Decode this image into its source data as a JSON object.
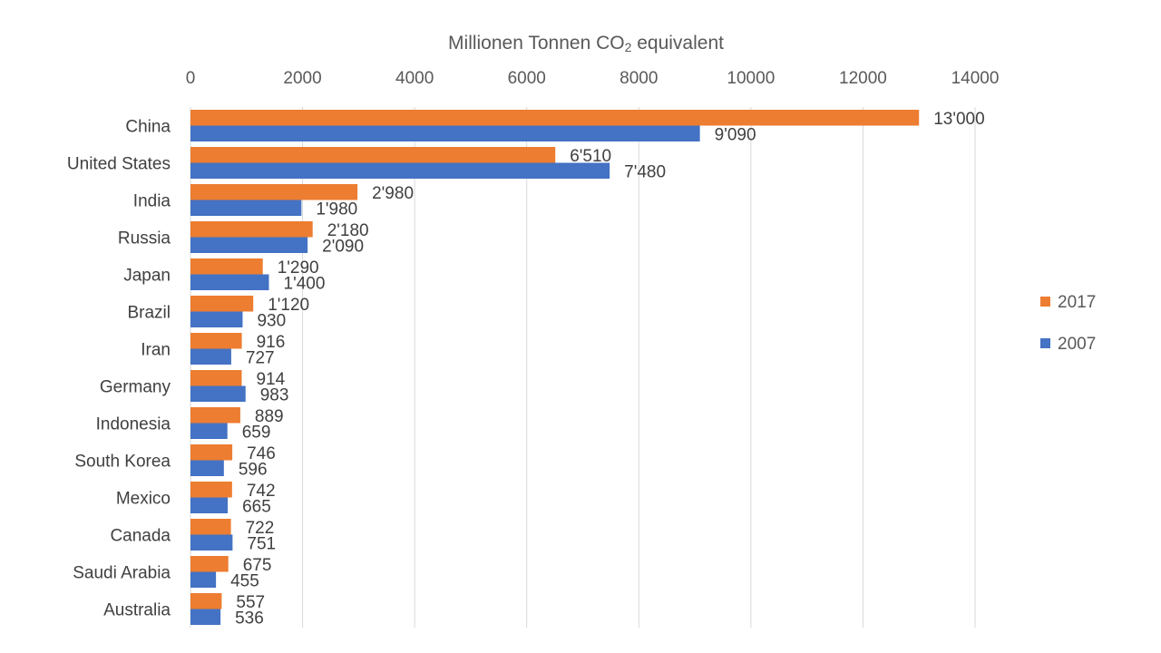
{
  "chart_data": {
    "type": "bar",
    "orientation": "horizontal",
    "title": "",
    "xlabel": "Millionen Tonnen CO",
    "xlabel_subscript": "2",
    "xlabel_suffix": " equivalent",
    "xlim": [
      0,
      14000
    ],
    "xticks": [
      "0",
      "2000",
      "4000",
      "6000",
      "8000",
      "10000",
      "12000",
      "14000"
    ],
    "x_axis_position": "top",
    "grid": true,
    "legend_position": "right",
    "categories": [
      "China",
      "United States",
      "India",
      "Russia",
      "Japan",
      "Brazil",
      "Iran",
      "Germany",
      "Indonesia",
      "South Korea",
      "Mexico",
      "Canada",
      "Saudi Arabia",
      "Australia"
    ],
    "series": [
      {
        "name": "2017",
        "color": "#ED7D31",
        "values": [
          13000,
          6510,
          2980,
          2180,
          1290,
          1120,
          916,
          914,
          889,
          746,
          742,
          722,
          675,
          557
        ],
        "labels": [
          "13'000",
          "6'510",
          "2'980",
          "2'180",
          "1'290",
          "1'120",
          "916",
          "914",
          "889",
          "746",
          "742",
          "722",
          "675",
          "557"
        ]
      },
      {
        "name": "2007",
        "color": "#4472C4",
        "values": [
          9090,
          7480,
          1980,
          2090,
          1400,
          930,
          727,
          983,
          659,
          596,
          665,
          751,
          455,
          536
        ],
        "labels": [
          "9'090",
          "7'480",
          "1'980",
          "2'090",
          "1'400",
          "930",
          "727",
          "983",
          "659",
          "596",
          "665",
          "751",
          "455",
          "536"
        ]
      }
    ]
  }
}
